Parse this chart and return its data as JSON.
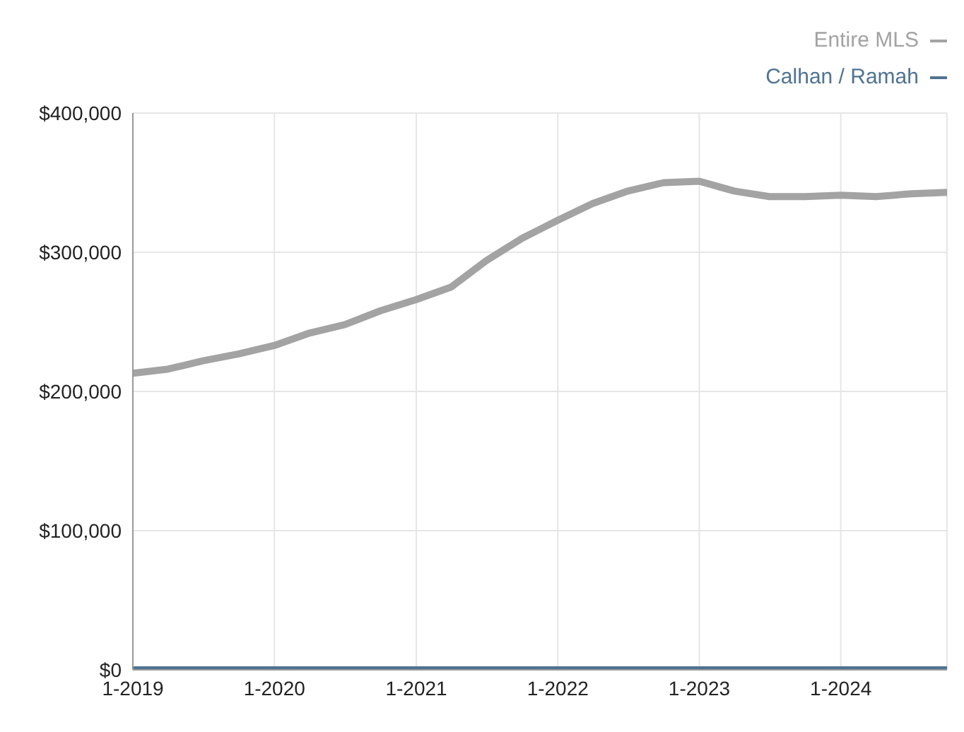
{
  "chart_data": {
    "type": "line",
    "x": [
      "2019-01",
      "2019-04",
      "2019-07",
      "2019-10",
      "2020-01",
      "2020-04",
      "2020-07",
      "2020-10",
      "2021-01",
      "2021-04",
      "2021-07",
      "2021-10",
      "2022-01",
      "2022-04",
      "2022-07",
      "2022-10",
      "2023-01",
      "2023-04",
      "2023-07",
      "2023-10",
      "2024-01",
      "2024-04",
      "2024-07",
      "2024-10"
    ],
    "series": [
      {
        "name": "Entire MLS",
        "color": "#a3a3a3",
        "values": [
          213000,
          216000,
          222000,
          227000,
          233000,
          242000,
          248000,
          258000,
          266000,
          275000,
          294000,
          310000,
          323000,
          335000,
          344000,
          350000,
          351000,
          344000,
          340000,
          340000,
          341000,
          340000,
          342000,
          343000
        ]
      },
      {
        "name": "Calhan / Ramah",
        "color": "#4f7392",
        "values": [
          0,
          0,
          0,
          0,
          0,
          0,
          0,
          0,
          0,
          0,
          0,
          0,
          0,
          0,
          0,
          0,
          0,
          0,
          0,
          0,
          0,
          0,
          0,
          0
        ]
      }
    ],
    "xlim": [
      "2019-01",
      "2024-10"
    ],
    "xticks": [
      {
        "value": "2019-01",
        "label": "1-2019"
      },
      {
        "value": "2020-01",
        "label": "1-2020"
      },
      {
        "value": "2021-01",
        "label": "1-2021"
      },
      {
        "value": "2022-01",
        "label": "1-2022"
      },
      {
        "value": "2023-01",
        "label": "1-2023"
      },
      {
        "value": "2024-01",
        "label": "1-2024"
      }
    ],
    "ylim": [
      0,
      400000
    ],
    "yticks": [
      {
        "value": 0,
        "label": "$0"
      },
      {
        "value": 100000,
        "label": "$100,000"
      },
      {
        "value": 200000,
        "label": "$200,000"
      },
      {
        "value": 300000,
        "label": "$300,000"
      },
      {
        "value": 400000,
        "label": "$400,000"
      }
    ],
    "grid": true,
    "legend": "top right",
    "marker": "none",
    "line_style": "solid"
  }
}
